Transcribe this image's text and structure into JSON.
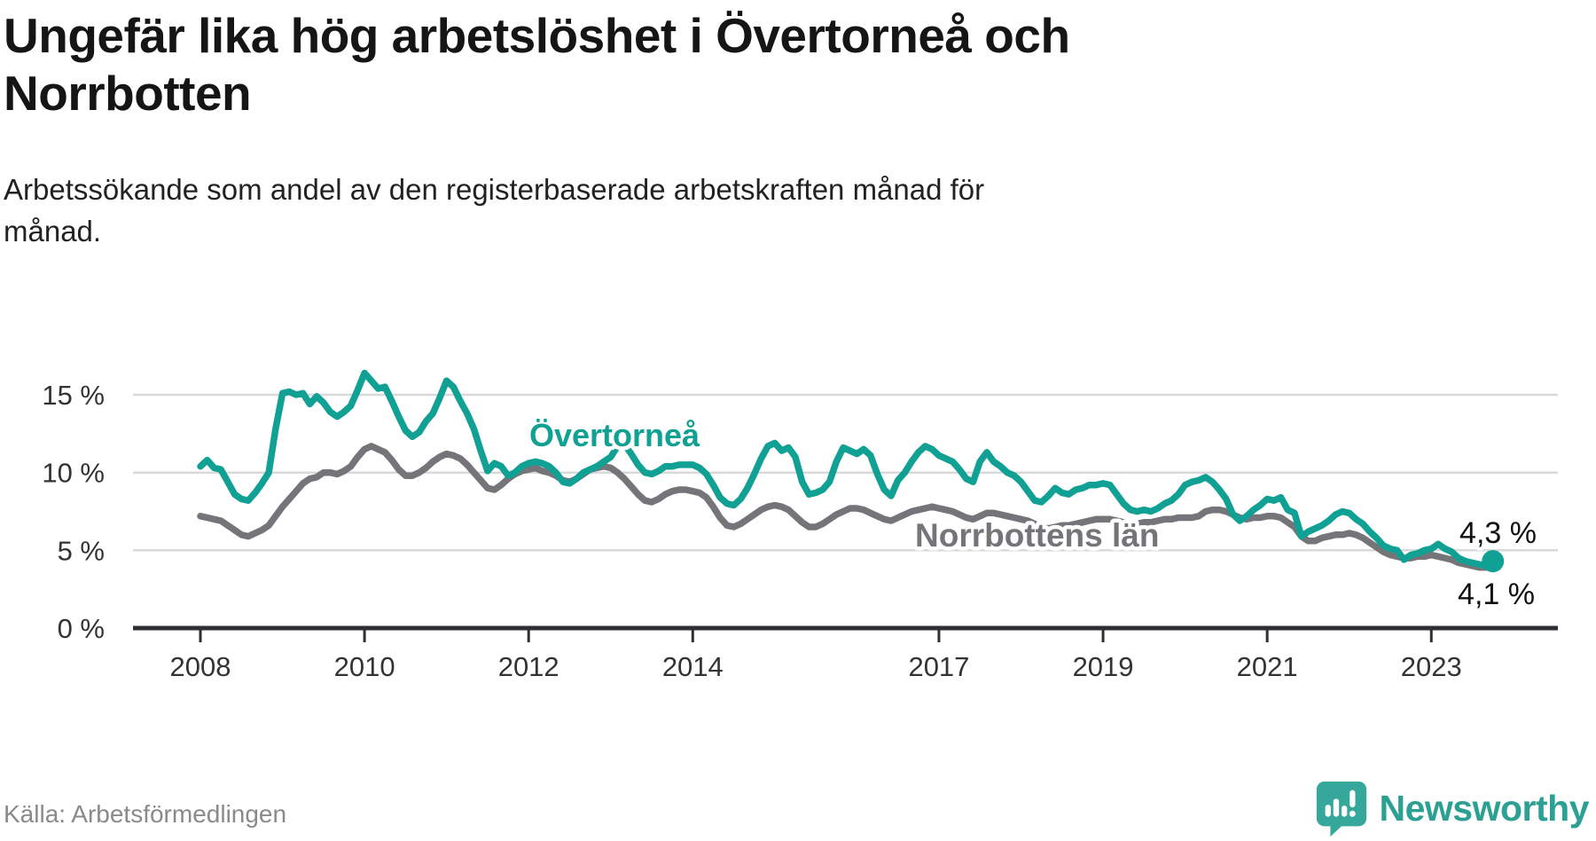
{
  "header": {
    "title_lines": [
      "Ungefär lika hög arbetslöshet i Övertorneå och",
      "Norrbotten"
    ],
    "subtitle_lines": [
      "Arbetssökande som andel av den registerbaserade arbetskraften månad för",
      "månad."
    ]
  },
  "footer": {
    "source": "Källa: Arbetsförmedlingen",
    "brand": "Newsworthy"
  },
  "colors": {
    "overtornea": "#10a094",
    "norrbotten": "#757579",
    "gridline": "#d9d9d9",
    "axis": "#2f2f33",
    "tick_label": "#333333",
    "end_label": "#111111",
    "logo_teal": "#35a79b"
  },
  "chart_data": {
    "type": "line",
    "title": "Ungefär lika hög arbetslöshet i Övertorneå och Norrbotten",
    "subtitle": "Arbetssökande som andel av den registerbaserade arbetskraften månad för månad.",
    "x_unit": "month",
    "x_start": "2008-01",
    "x_end": "2023-10",
    "grid": true,
    "ylim": [
      0,
      17.3
    ],
    "x_ticks": [
      {
        "year": 2008,
        "label": "2008"
      },
      {
        "year": 2010,
        "label": "2010"
      },
      {
        "year": 2012,
        "label": "2012"
      },
      {
        "year": 2014,
        "label": "2014"
      },
      {
        "year": 2017,
        "label": "2017"
      },
      {
        "year": 2019,
        "label": "2019"
      },
      {
        "year": 2021,
        "label": "2021"
      },
      {
        "year": 2023,
        "label": "2023"
      }
    ],
    "y_ticks": [
      {
        "value": 15,
        "label": "15 %"
      },
      {
        "value": 10,
        "label": "10 %"
      },
      {
        "value": 5,
        "label": "5 %"
      },
      {
        "value": 0,
        "label": "0 %"
      }
    ],
    "series": [
      {
        "name": "Övertorneå",
        "color": "#10a094",
        "end_label": "4,3 %",
        "end_dot": true,
        "values": [
          10.4,
          10.8,
          10.3,
          10.2,
          9.4,
          8.6,
          8.3,
          8.2,
          8.7,
          9.3,
          10.0,
          12.8,
          15.1,
          15.2,
          15.0,
          15.1,
          14.4,
          14.9,
          14.5,
          13.9,
          13.6,
          13.9,
          14.3,
          15.3,
          16.4,
          15.9,
          15.4,
          15.5,
          14.6,
          13.6,
          12.7,
          12.3,
          12.6,
          13.3,
          13.8,
          14.8,
          15.9,
          15.5,
          14.6,
          13.8,
          12.8,
          11.4,
          10.1,
          10.6,
          10.4,
          9.8,
          10.0,
          10.4,
          10.6,
          10.7,
          10.6,
          10.4,
          10.0,
          9.4,
          9.3,
          9.6,
          10.0,
          10.2,
          10.4,
          10.7,
          11.0,
          11.7,
          11.8,
          11.2,
          10.5,
          10.0,
          9.9,
          10.1,
          10.4,
          10.4,
          10.5,
          10.5,
          10.5,
          10.3,
          9.9,
          9.2,
          8.4,
          8.0,
          7.9,
          8.3,
          9.0,
          9.9,
          10.9,
          11.7,
          11.9,
          11.4,
          11.6,
          11.0,
          9.4,
          8.6,
          8.7,
          8.9,
          9.4,
          10.7,
          11.6,
          11.4,
          11.2,
          11.5,
          11.1,
          9.9,
          8.9,
          8.5,
          9.5,
          10.0,
          10.7,
          11.3,
          11.7,
          11.5,
          11.1,
          10.9,
          10.7,
          10.2,
          9.6,
          9.4,
          10.7,
          11.3,
          10.7,
          10.4,
          10.0,
          9.8,
          9.4,
          8.8,
          8.2,
          8.1,
          8.5,
          9.0,
          8.7,
          8.6,
          8.9,
          9.0,
          9.2,
          9.2,
          9.3,
          9.2,
          8.6,
          8.0,
          7.6,
          7.5,
          7.6,
          7.5,
          7.7,
          8.0,
          8.2,
          8.6,
          9.2,
          9.4,
          9.5,
          9.7,
          9.4,
          8.9,
          8.3,
          7.3,
          6.9,
          7.2,
          7.6,
          7.9,
          8.3,
          8.2,
          8.4,
          7.6,
          7.4,
          5.9,
          6.2,
          6.4,
          6.6,
          6.9,
          7.3,
          7.5,
          7.4,
          7.0,
          6.7,
          6.2,
          5.8,
          5.3,
          5.1,
          5.0,
          4.4,
          4.7,
          4.8,
          5.0,
          5.1,
          5.4,
          5.1,
          4.9,
          4.5,
          4.3,
          4.2,
          4.1,
          4.0,
          4.3
        ]
      },
      {
        "name": "Norrbottens län",
        "color": "#757579",
        "end_label": "4,1 %",
        "end_dot": false,
        "values": [
          7.2,
          7.1,
          7.0,
          6.9,
          6.6,
          6.3,
          6.0,
          5.9,
          6.1,
          6.3,
          6.6,
          7.2,
          7.8,
          8.3,
          8.8,
          9.3,
          9.6,
          9.7,
          10.0,
          10.0,
          9.9,
          10.1,
          10.4,
          11.0,
          11.5,
          11.7,
          11.5,
          11.3,
          10.8,
          10.2,
          9.8,
          9.8,
          10.0,
          10.3,
          10.7,
          11.0,
          11.2,
          11.1,
          10.9,
          10.5,
          10.0,
          9.5,
          9.0,
          8.9,
          9.2,
          9.6,
          9.9,
          10.1,
          10.2,
          10.3,
          10.1,
          10.0,
          9.8,
          9.5,
          9.4,
          9.6,
          9.9,
          10.2,
          10.3,
          10.4,
          10.3,
          10.0,
          9.6,
          9.1,
          8.6,
          8.2,
          8.1,
          8.3,
          8.6,
          8.8,
          8.9,
          8.9,
          8.8,
          8.7,
          8.4,
          7.8,
          7.1,
          6.6,
          6.5,
          6.7,
          7.0,
          7.3,
          7.6,
          7.8,
          7.9,
          7.8,
          7.6,
          7.2,
          6.8,
          6.5,
          6.5,
          6.7,
          7.0,
          7.3,
          7.5,
          7.7,
          7.7,
          7.6,
          7.4,
          7.2,
          7.0,
          6.9,
          7.1,
          7.3,
          7.5,
          7.6,
          7.7,
          7.8,
          7.7,
          7.6,
          7.5,
          7.3,
          7.1,
          7.0,
          7.2,
          7.4,
          7.4,
          7.3,
          7.2,
          7.1,
          7.0,
          6.9,
          6.7,
          6.5,
          6.4,
          6.5,
          6.6,
          6.6,
          6.7,
          6.8,
          6.9,
          7.0,
          7.0,
          7.0,
          6.9,
          6.8,
          6.7,
          6.7,
          6.8,
          6.8,
          6.9,
          7.0,
          7.0,
          7.1,
          7.1,
          7.1,
          7.2,
          7.5,
          7.6,
          7.6,
          7.5,
          7.3,
          7.1,
          7.0,
          7.1,
          7.1,
          7.2,
          7.2,
          7.1,
          6.8,
          6.5,
          5.9,
          5.6,
          5.6,
          5.8,
          5.9,
          6.0,
          6.0,
          6.1,
          6.0,
          5.8,
          5.5,
          5.2,
          4.9,
          4.7,
          4.6,
          4.5,
          4.5,
          4.6,
          4.6,
          4.7,
          4.6,
          4.5,
          4.4,
          4.2,
          4.1,
          4.0,
          3.9,
          3.9,
          4.1
        ]
      }
    ],
    "legend_position": "inline-labels"
  }
}
